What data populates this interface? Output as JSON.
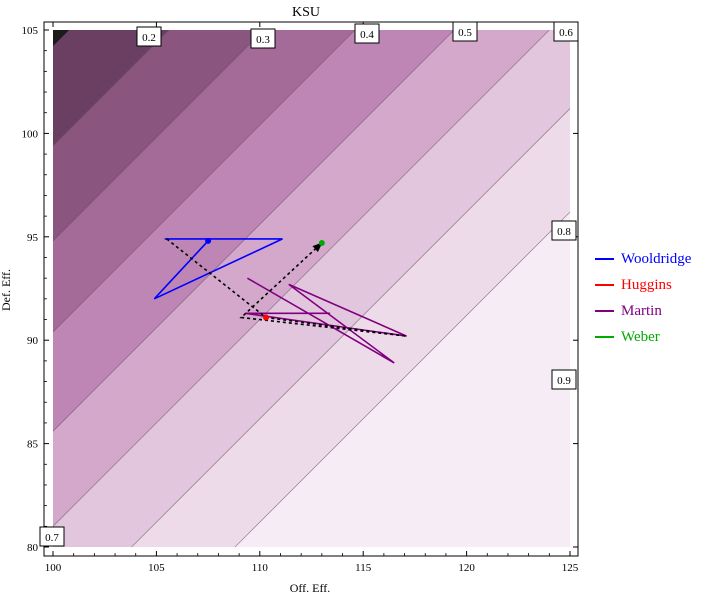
{
  "chart_data": {
    "type": "contour",
    "title": "KSU",
    "xlabel": "Off. Eff.",
    "ylabel": "Def. Eff.",
    "xlim": [
      100,
      125
    ],
    "ylim": [
      80,
      105
    ],
    "xticks": [
      "100",
      "105",
      "110",
      "115",
      "120",
      "125"
    ],
    "yticks": [
      "80",
      "85",
      "90",
      "95",
      "100",
      "105"
    ],
    "contour_levels": [
      {
        "level": 0.2,
        "label": "0.2"
      },
      {
        "level": 0.3,
        "label": "0.3"
      },
      {
        "level": 0.4,
        "label": "0.4"
      },
      {
        "level": 0.5,
        "label": "0.5"
      },
      {
        "level": 0.6,
        "label": "0.6"
      },
      {
        "level": 0.7,
        "label": "0.7"
      },
      {
        "level": 0.8,
        "label": "0.8"
      },
      {
        "level": 0.9,
        "label": "0.9"
      }
    ],
    "fill_colors": [
      "#1b1b1b",
      "#6a3f62",
      "#8a557f",
      "#a56b98",
      "#be86b4",
      "#d3a8cb",
      "#e2c6de",
      "#eddbea",
      "#f6ecf5"
    ],
    "series": [
      {
        "name": "Wooldridge",
        "color": "#0000ff",
        "points": [
          [
            105.4,
            94.9
          ],
          [
            111.1,
            94.9
          ],
          [
            104.9,
            92.0
          ],
          [
            107.5,
            94.8
          ]
        ],
        "marker": [
          107.5,
          94.8
        ]
      },
      {
        "name": "Huggins",
        "color": "#ff0000",
        "points": [],
        "marker": [
          110.3,
          91.1
        ]
      },
      {
        "name": "Martin",
        "color": "#800080",
        "points": [
          [
            109.4,
            93.0
          ],
          [
            116.5,
            88.9
          ],
          [
            111.4,
            92.7
          ],
          [
            117.1,
            90.2
          ],
          [
            109.3,
            91.3
          ],
          [
            113.4,
            91.3
          ]
        ],
        "marker": null
      },
      {
        "name": "Weber",
        "color": "#00aa00",
        "points": [],
        "marker": [
          113.0,
          94.7
        ]
      }
    ],
    "dashed_path": [
      [
        105.5,
        94.9
      ],
      [
        110.3,
        91.1
      ],
      [
        117.1,
        90.2
      ],
      [
        109.1,
        91.1
      ],
      [
        113.0,
        94.7
      ]
    ],
    "legend_position": "right"
  }
}
